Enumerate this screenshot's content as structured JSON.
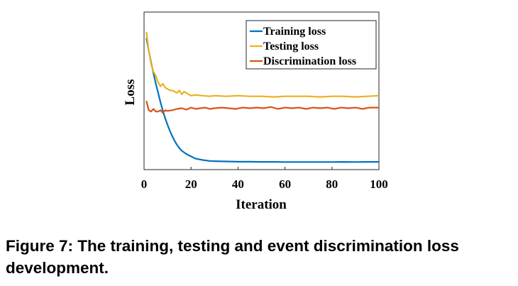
{
  "chart_data": {
    "type": "line",
    "title": "",
    "xlabel": "Iteration",
    "ylabel": "Loss",
    "xlim": [
      0,
      100
    ],
    "ylim": [
      0,
      1
    ],
    "xticks": [
      0,
      20,
      40,
      60,
      80,
      100
    ],
    "legend_position": "top-right",
    "grid": false,
    "series": [
      {
        "name": "Training loss",
        "color": "#0072BD",
        "x": [
          1,
          2,
          3,
          4,
          5,
          6,
          7,
          8,
          9,
          10,
          11,
          12,
          13,
          14,
          15,
          16,
          18,
          20,
          22,
          25,
          28,
          30,
          35,
          40,
          45,
          50,
          55,
          60,
          65,
          70,
          75,
          80,
          85,
          90,
          95,
          100
        ],
        "values": [
          0.955,
          0.86,
          0.77,
          0.69,
          0.61,
          0.54,
          0.47,
          0.405,
          0.35,
          0.3,
          0.255,
          0.215,
          0.18,
          0.15,
          0.125,
          0.105,
          0.08,
          0.062,
          0.045,
          0.035,
          0.028,
          0.026,
          0.024,
          0.022,
          0.022,
          0.021,
          0.021,
          0.02,
          0.02,
          0.02,
          0.02,
          0.02,
          0.021,
          0.02,
          0.021,
          0.021
        ]
      },
      {
        "name": "Testing loss",
        "color": "#EDB120",
        "x": [
          1,
          2,
          3,
          4,
          5,
          6,
          7,
          8,
          9,
          10,
          11,
          12,
          13,
          14,
          15,
          16,
          17,
          18,
          19,
          20,
          22,
          25,
          28,
          30,
          35,
          40,
          45,
          50,
          55,
          60,
          65,
          70,
          75,
          80,
          85,
          90,
          95,
          100
        ],
        "values": [
          1.0,
          0.86,
          0.76,
          0.7,
          0.67,
          0.62,
          0.59,
          0.61,
          0.58,
          0.57,
          0.56,
          0.56,
          0.55,
          0.54,
          0.56,
          0.53,
          0.55,
          0.54,
          0.53,
          0.52,
          0.525,
          0.52,
          0.515,
          0.52,
          0.515,
          0.52,
          0.515,
          0.515,
          0.51,
          0.515,
          0.515,
          0.515,
          0.51,
          0.515,
          0.515,
          0.51,
          0.515,
          0.52
        ]
      },
      {
        "name": "Discrimination loss",
        "color": "#D95319",
        "x": [
          1,
          2,
          3,
          4,
          5,
          6,
          7,
          8,
          9,
          10,
          12,
          14,
          16,
          18,
          20,
          22,
          24,
          26,
          28,
          30,
          33,
          36,
          39,
          42,
          45,
          48,
          51,
          54,
          57,
          60,
          63,
          66,
          69,
          72,
          75,
          78,
          81,
          84,
          87,
          90,
          93,
          96,
          100
        ],
        "values": [
          0.48,
          0.41,
          0.4,
          0.42,
          0.4,
          0.4,
          0.41,
          0.39,
          0.41,
          0.405,
          0.41,
          0.42,
          0.425,
          0.415,
          0.43,
          0.42,
          0.425,
          0.43,
          0.42,
          0.425,
          0.43,
          0.425,
          0.42,
          0.43,
          0.425,
          0.43,
          0.425,
          0.435,
          0.42,
          0.43,
          0.425,
          0.43,
          0.42,
          0.43,
          0.425,
          0.43,
          0.42,
          0.43,
          0.425,
          0.43,
          0.42,
          0.43,
          0.43
        ]
      }
    ]
  },
  "caption": {
    "line1": "Figure 7: The training, testing and event discrimination loss",
    "line2": "development."
  }
}
